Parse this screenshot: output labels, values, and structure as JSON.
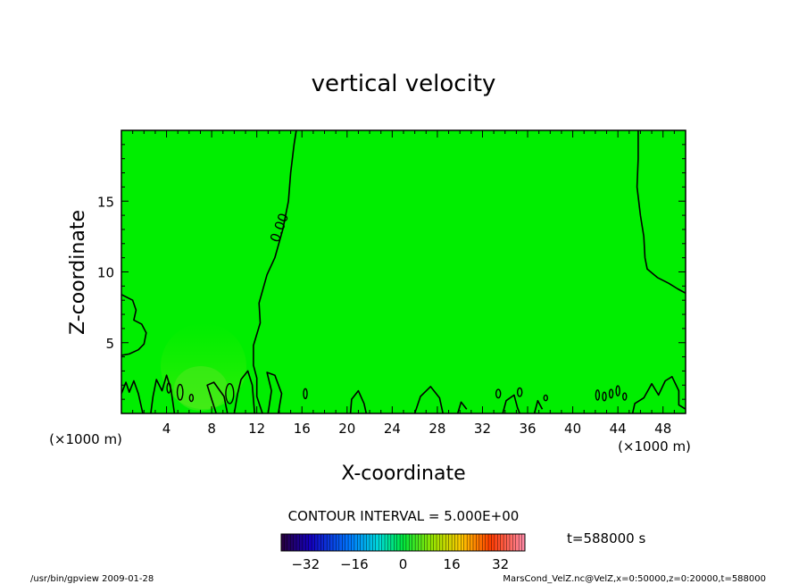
{
  "chart_data": {
    "type": "contour",
    "title": "vertical velocity",
    "xlabel": "X-coordinate",
    "ylabel": "Z-coordinate",
    "x_unit": "(×1000 m)",
    "y_unit": "(×1000 m)",
    "xlim": [
      0,
      50
    ],
    "ylim": [
      0,
      20
    ],
    "x_ticks": [
      "4",
      "8",
      "12",
      "16",
      "20",
      "24",
      "28",
      "32",
      "36",
      "40",
      "44",
      "48"
    ],
    "y_ticks": [
      "5",
      "10",
      "15"
    ],
    "contour_label": "0.00",
    "contour_interval_text": "CONTOUR INTERVAL = 5.000E+00",
    "time_label": "t=588000 s",
    "colorbar": {
      "min": -40,
      "max": 40,
      "tick_labels": [
        "−32",
        "−16",
        "0",
        "16",
        "32"
      ],
      "tick_values": [
        -32,
        -16,
        0,
        16,
        32
      ]
    },
    "field_color": "#00ee00",
    "contour_color": "#000000",
    "zero_contours": [
      [
        [
          0,
          8.4
        ],
        [
          1,
          8.0
        ],
        [
          1.3,
          7.3
        ],
        [
          1.1,
          6.6
        ],
        [
          1.8,
          6.3
        ],
        [
          2.2,
          5.7
        ],
        [
          2.0,
          4.9
        ],
        [
          1.5,
          4.5
        ],
        [
          0.7,
          4.2
        ],
        [
          0,
          4.1
        ]
      ],
      [
        [
          12.5,
          0
        ],
        [
          12.0,
          1.2
        ],
        [
          12.0,
          2.5
        ],
        [
          11.7,
          3.4
        ],
        [
          11.7,
          4.8
        ],
        [
          12.3,
          6.4
        ],
        [
          12.2,
          7.8
        ],
        [
          12.9,
          9.8
        ],
        [
          13.6,
          11.0
        ],
        [
          14.3,
          13.0
        ],
        [
          14.8,
          15.0
        ],
        [
          15.0,
          17.0
        ],
        [
          15.3,
          19.0
        ],
        [
          15.5,
          20.0
        ]
      ],
      [
        [
          45.8,
          20.0
        ],
        [
          45.8,
          18.0
        ],
        [
          45.7,
          16.0
        ],
        [
          46.0,
          14.0
        ],
        [
          46.3,
          12.5
        ],
        [
          46.4,
          11.0
        ],
        [
          46.6,
          10.2
        ],
        [
          47.5,
          9.6
        ],
        [
          48.5,
          9.2
        ],
        [
          49.3,
          8.8
        ],
        [
          50,
          8.5
        ]
      ],
      [
        [
          0,
          1.4
        ],
        [
          0.4,
          2.2
        ],
        [
          0.7,
          1.5
        ],
        [
          1.1,
          2.3
        ],
        [
          1.5,
          1.4
        ],
        [
          1.9,
          0
        ]
      ],
      [
        [
          2.6,
          0
        ],
        [
          2.8,
          1.2
        ],
        [
          3.1,
          2.4
        ],
        [
          3.6,
          1.6
        ],
        [
          4.0,
          2.7
        ],
        [
          4.4,
          1.7
        ],
        [
          4.7,
          0
        ]
      ],
      [
        [
          8.4,
          0
        ],
        [
          8.0,
          1.0
        ],
        [
          7.6,
          2.0
        ],
        [
          8.2,
          2.2
        ],
        [
          9.1,
          1.2
        ],
        [
          9.4,
          0
        ]
      ],
      [
        [
          10.0,
          0
        ],
        [
          10.3,
          1.4
        ],
        [
          10.6,
          2.4
        ],
        [
          11.2,
          3.0
        ],
        [
          11.6,
          2.0
        ],
        [
          11.8,
          0
        ]
      ],
      [
        [
          13.0,
          0
        ],
        [
          13.3,
          1.6
        ],
        [
          12.9,
          2.9
        ],
        [
          13.6,
          2.7
        ],
        [
          14.2,
          1.4
        ],
        [
          13.9,
          0
        ]
      ],
      [
        [
          20.3,
          0
        ],
        [
          20.4,
          1.0
        ],
        [
          21.0,
          1.6
        ],
        [
          21.5,
          0.7
        ],
        [
          21.7,
          0
        ]
      ],
      [
        [
          26.0,
          0
        ],
        [
          26.5,
          1.2
        ],
        [
          27.4,
          1.9
        ],
        [
          28.2,
          1.1
        ],
        [
          28.5,
          0
        ]
      ],
      [
        [
          29.8,
          0
        ],
        [
          30.1,
          0.8
        ],
        [
          30.6,
          0.3
        ]
      ],
      [
        [
          33.8,
          0
        ],
        [
          34.1,
          0.9
        ],
        [
          34.8,
          1.3
        ],
        [
          35.1,
          0.4
        ],
        [
          35.3,
          0
        ]
      ],
      [
        [
          36.6,
          0
        ],
        [
          36.9,
          0.9
        ],
        [
          37.3,
          0.3
        ]
      ],
      [
        [
          45.3,
          0
        ],
        [
          45.5,
          0.7
        ],
        [
          46.3,
          1.1
        ],
        [
          47.0,
          2.1
        ],
        [
          47.6,
          1.3
        ],
        [
          48.2,
          2.3
        ],
        [
          48.8,
          2.6
        ],
        [
          49.4,
          1.6
        ],
        [
          49.4,
          0.6
        ],
        [
          50,
          0.3
        ]
      ]
    ],
    "small_closed_contours": [
      [
        4.2,
        1.8,
        0.15,
        0.35
      ],
      [
        5.2,
        1.5,
        0.25,
        0.55
      ],
      [
        6.2,
        1.1,
        0.15,
        0.25
      ],
      [
        9.6,
        1.4,
        0.35,
        0.7
      ],
      [
        16.3,
        1.4,
        0.15,
        0.35
      ],
      [
        33.4,
        1.4,
        0.2,
        0.3
      ],
      [
        35.3,
        1.5,
        0.2,
        0.3
      ],
      [
        37.6,
        1.1,
        0.15,
        0.2
      ],
      [
        42.2,
        1.3,
        0.15,
        0.35
      ],
      [
        42.8,
        1.2,
        0.15,
        0.3
      ],
      [
        43.4,
        1.4,
        0.15,
        0.3
      ],
      [
        44.0,
        1.6,
        0.15,
        0.35
      ],
      [
        44.6,
        1.2,
        0.12,
        0.25
      ]
    ]
  },
  "footer": {
    "left": "/usr/bin/gpview   2009-01-28",
    "right": "MarsCond_VelZ.nc@VelZ,x=0:50000,z=0:20000,t=588000"
  }
}
